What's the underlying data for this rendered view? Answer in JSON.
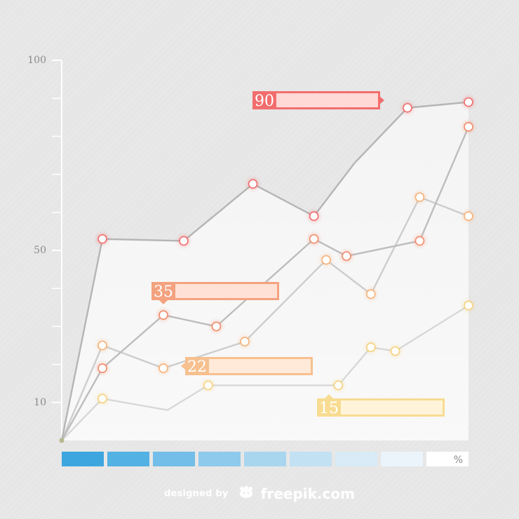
{
  "chart_data": {
    "type": "line",
    "x": [
      0,
      1,
      2,
      3,
      4,
      5,
      6,
      7,
      8,
      9,
      10
    ],
    "ylim": [
      0,
      100
    ],
    "y_ticks": [
      {
        "value": 100,
        "label": "100"
      },
      {
        "value": 50,
        "label": "50"
      },
      {
        "value": 10,
        "label": "10"
      }
    ],
    "minor_tick_step": 10,
    "grid": false,
    "series": [
      {
        "color": "#f26d6d",
        "points": [
          [
            0,
            0
          ],
          [
            1,
            53
          ],
          [
            3,
            52.5
          ],
          [
            4.7,
            67.5
          ],
          [
            6.2,
            59
          ],
          [
            7.2,
            73
          ],
          [
            8.5,
            87.5
          ],
          [
            10,
            89
          ]
        ],
        "markers": [
          1,
          1,
          1,
          1,
          1,
          0,
          1,
          1
        ]
      },
      {
        "color": "#f28b6b",
        "points": [
          [
            0,
            0
          ],
          [
            1,
            19
          ],
          [
            2.5,
            33
          ],
          [
            3.8,
            30
          ],
          [
            6.2,
            53
          ],
          [
            7,
            48.5
          ],
          [
            8.8,
            52.5
          ],
          [
            10,
            82.5
          ]
        ],
        "markers": [
          1,
          1,
          1,
          1,
          1,
          1,
          1,
          1
        ]
      },
      {
        "color": "#f6b27a",
        "points": [
          [
            0,
            0
          ],
          [
            1,
            25
          ],
          [
            2.5,
            19
          ],
          [
            4.5,
            26
          ],
          [
            6.5,
            47.5
          ],
          [
            7.6,
            38.5
          ],
          [
            8.8,
            64
          ],
          [
            10,
            59
          ]
        ],
        "markers": [
          1,
          1,
          1,
          1,
          1,
          1,
          1,
          1
        ]
      },
      {
        "color": "#f5d27e",
        "points": [
          [
            0,
            0
          ],
          [
            1,
            11
          ],
          [
            2.6,
            8
          ],
          [
            3.6,
            14.5
          ],
          [
            6.8,
            14.5
          ],
          [
            7.6,
            24.5
          ],
          [
            8.2,
            23.5
          ],
          [
            10,
            35.5
          ]
        ],
        "markers": [
          1,
          1,
          0,
          1,
          1,
          1,
          1,
          1
        ]
      }
    ],
    "callouts": [
      {
        "value": "90",
        "color": "#f26d6d",
        "light": "#ffd9d6"
      },
      {
        "value": "35",
        "color": "#f4a27f",
        "light": "#ffe1d5"
      },
      {
        "value": "22",
        "color": "#f7c08f",
        "light": "#ffead9"
      },
      {
        "value": "15",
        "color": "#f7dc92",
        "light": "#fff4d9"
      }
    ],
    "legend_scale": {
      "colors": [
        "#3ea6df",
        "#54b1e4",
        "#73bee8",
        "#8ecaeb",
        "#a9d6ef",
        "#c2e1f2",
        "#d8ebf6",
        "#ebf4fa",
        "#ffffff"
      ],
      "label": "%"
    }
  },
  "credit": {
    "prefix": "designed by",
    "brand": "freepik.com",
    "logo_icon": "freepik-logo-icon"
  }
}
